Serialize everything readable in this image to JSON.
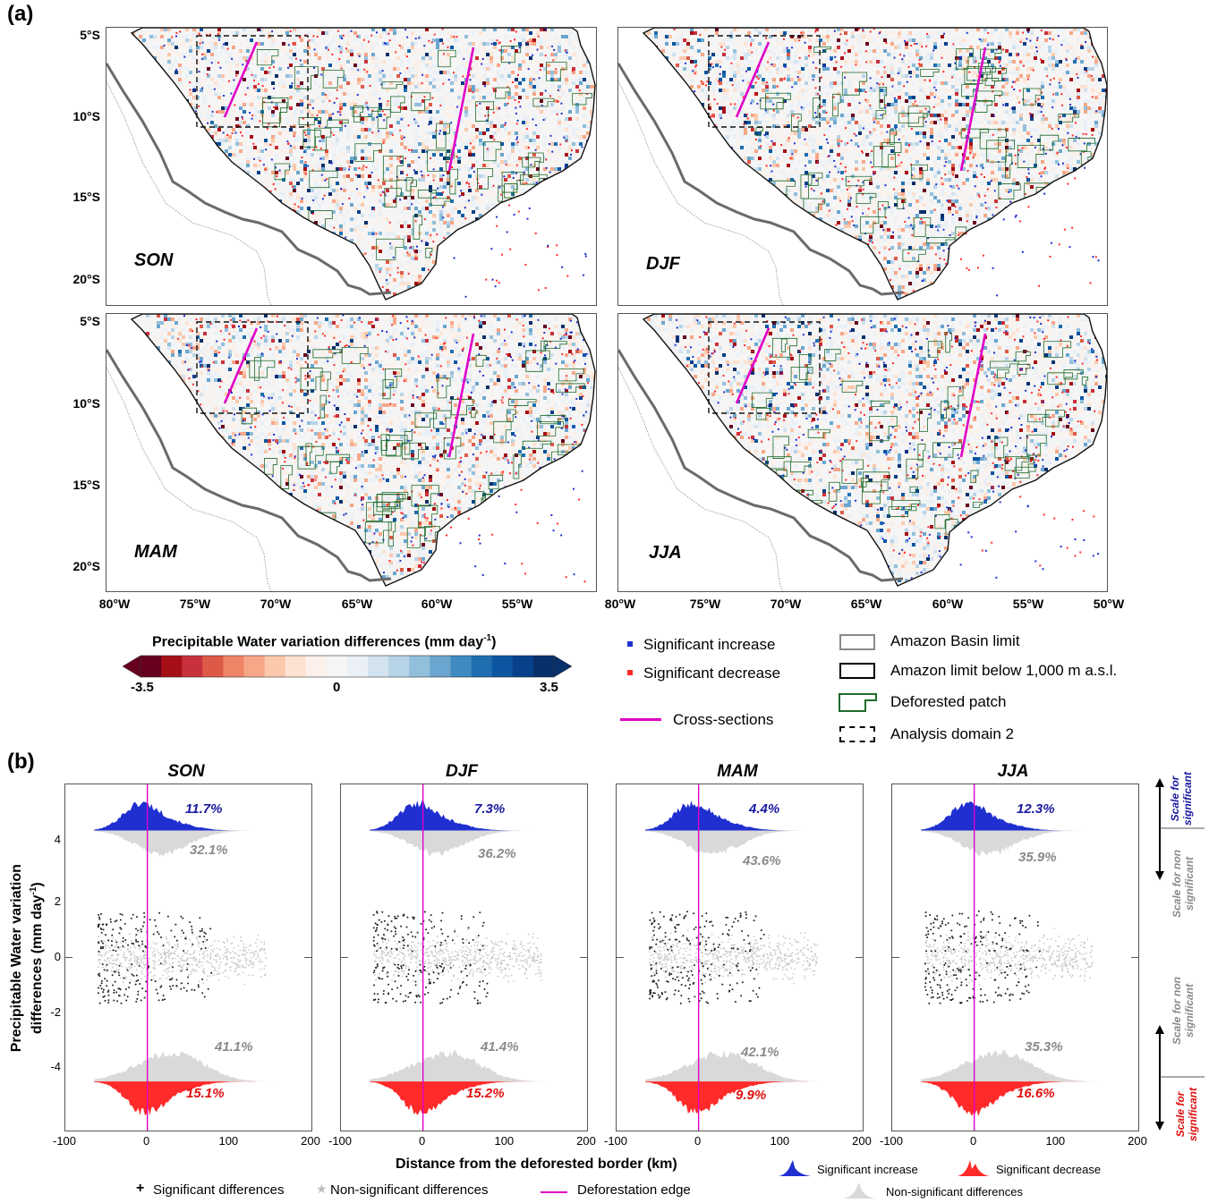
{
  "panel_a": {
    "tag": "(a)",
    "seasons": [
      "SON",
      "DJF",
      "MAM",
      "JJA"
    ],
    "lat_ticks": [
      "5°S",
      "10°S",
      "15°S",
      "20°S"
    ],
    "lon_ticks": [
      "80°W",
      "75°W",
      "70°W",
      "65°W",
      "60°W",
      "55°W",
      "50°W"
    ],
    "lon_ticks_left": [
      "80°W",
      "75°W",
      "70°W",
      "65°W",
      "60°W",
      "55°W"
    ]
  },
  "colorbar": {
    "title": "Precipitable Water variation differences (mm day",
    "title_sup": "-1",
    "title_end": ")",
    "min_label": "-3.5",
    "mid_label": "0",
    "max_label": "3.5",
    "colors": [
      "#67001f",
      "#a50f15",
      "#c8313b",
      "#de5a48",
      "#ee8566",
      "#f6a788",
      "#fbc8ac",
      "#fde2d2",
      "#fbf1ea",
      "#f5f5f5",
      "#eaf0f6",
      "#d3e3f0",
      "#b7d3e8",
      "#92bfdc",
      "#6aa6cf",
      "#3f8bc1",
      "#1f6fb0",
      "#0c55a0",
      "#08408a",
      "#08306b"
    ]
  },
  "legend_a": {
    "sig_increase": "Significant increase",
    "sig_decrease": "Significant decrease",
    "cross_sections": "Cross-sections",
    "basin_limit": "Amazon Basin limit",
    "below_1000": "Amazon limit below 1,000 m a.s.l.",
    "deforested": "Deforested patch",
    "domain2": "Analysis domain 2"
  },
  "panel_b": {
    "tag": "(b)",
    "ylabel_line1": "Precipitable Water variation",
    "ylabel_line2": "differences (mm day",
    "ylabel_sup": "-1",
    "ylabel_end": ")",
    "xlabel": "Distance from the deforested border (km)",
    "y_ticks": [
      "4",
      "2",
      "0",
      "-2",
      "-4"
    ],
    "x_ticks": [
      "-100",
      "0",
      "100",
      "200"
    ],
    "scale_sig_top": "Scale for significant",
    "scale_nonsig_top": "Scale for non significant",
    "scale_nonsig_bottom": "Scale for non significant",
    "scale_sig_bottom": "Scale for significant"
  },
  "chart_data": [
    {
      "type": "scatter",
      "title": "SON",
      "xlabel": "Distance from the deforested border (km)",
      "ylabel": "Precipitable Water variation differences (mm day-1)",
      "xlim": [
        -100,
        200
      ],
      "ylim": [
        -6,
        6
      ],
      "annotations": {
        "sig_increase_pct": "11.7%",
        "nonsig_upper_pct": "32.1%",
        "nonsig_lower_pct": "41.1%",
        "sig_decrease_pct": "15.1%"
      }
    },
    {
      "type": "scatter",
      "title": "DJF",
      "xlim": [
        -100,
        200
      ],
      "ylim": [
        -6,
        6
      ],
      "annotations": {
        "sig_increase_pct": "7.3%",
        "nonsig_upper_pct": "36.2%",
        "nonsig_lower_pct": "41.4%",
        "sig_decrease_pct": "15.2%"
      }
    },
    {
      "type": "scatter",
      "title": "MAM",
      "xlim": [
        -100,
        200
      ],
      "ylim": [
        -6,
        6
      ],
      "annotations": {
        "sig_increase_pct": "4.4%",
        "nonsig_upper_pct": "43.6%",
        "nonsig_lower_pct": "42.1%",
        "sig_decrease_pct": "9.9%"
      }
    },
    {
      "type": "scatter",
      "title": "JJA",
      "xlim": [
        -100,
        200
      ],
      "ylim": [
        -6,
        6
      ],
      "annotations": {
        "sig_increase_pct": "12.3%",
        "nonsig_upper_pct": "35.9%",
        "nonsig_lower_pct": "35.3%",
        "sig_decrease_pct": "16.6%"
      }
    }
  ],
  "legend_b": {
    "sig_diff": "Significant differences",
    "nonsig_diff": "Non-significant differences",
    "edge": "Deforestation edge",
    "sig_increase": "Significant increase",
    "sig_decrease": "Significant decrease",
    "nonsig": "Non-significant differences"
  },
  "colors": {
    "increase": "#1f2fd0",
    "decrease": "#ff2a2a",
    "nonsig": "#d9d9d9",
    "edge": "#e000c8",
    "deforest": "#1e6b2a",
    "pct_blue": "#1a1aa0",
    "pct_red": "#e01010",
    "pct_grey": "#8a8a8a"
  }
}
